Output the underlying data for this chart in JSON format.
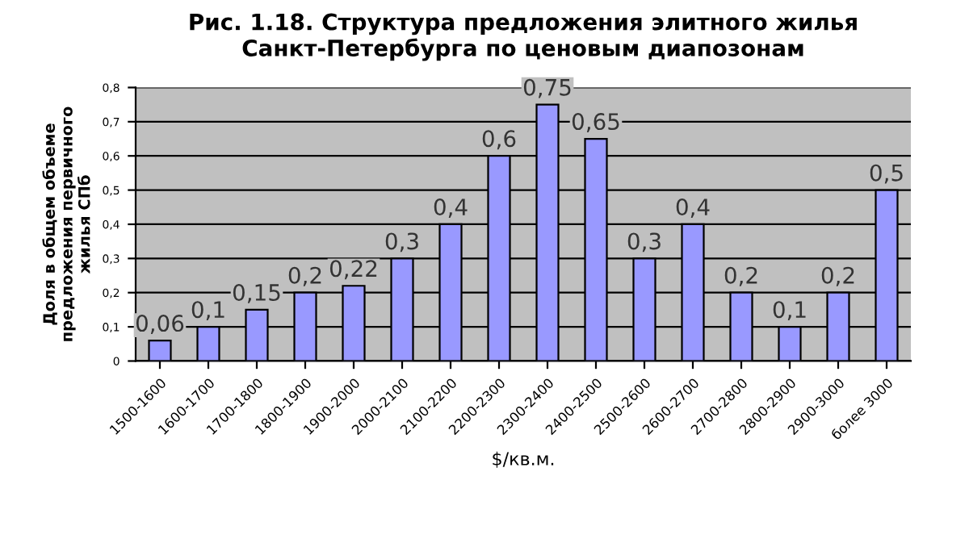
{
  "chart_data": {
    "type": "bar",
    "title": "Рис. 1.18. Структура предложения элитного жилья\nСанкт-Петербурга по ценовым диапозонам",
    "xlabel": "$/кв.м.",
    "ylabel": "Доля в общем объеме\nпредложения первичного\nжилья СПб",
    "categories": [
      "1500-1600",
      "1600-1700",
      "1700-1800",
      "1800-1900",
      "1900-2000",
      "2000-2100",
      "2100-2200",
      "2200-2300",
      "2300-2400",
      "2400-2500",
      "2500-2600",
      "2600-2700",
      "2700-2800",
      "2800-2900",
      "2900-3000",
      "более 3000"
    ],
    "values": [
      0.06,
      0.1,
      0.15,
      0.2,
      0.22,
      0.3,
      0.4,
      0.6,
      0.75,
      0.65,
      0.3,
      0.4,
      0.2,
      0.1,
      0.2,
      0.5
    ],
    "value_labels": [
      "0,06",
      "0,1",
      "0,15",
      "0,2",
      "0,22",
      "0,3",
      "0,4",
      "0,6",
      "0,75",
      "0,65",
      "0,3",
      "0,4",
      "0,2",
      "0,1",
      "0,2",
      "0,5"
    ],
    "color": "#9999ff",
    "ylim": [
      0,
      0.8
    ],
    "yticks": [
      0,
      {
        "value": 0.1,
        "label": "0,1"
      },
      {
        "value": 0.2,
        "label": "0,2"
      },
      {
        "value": 0.3,
        "label": "0,3"
      },
      {
        "value": 0.4,
        "label": "0,4"
      },
      {
        "value": 0.5,
        "label": "0,5"
      },
      {
        "value": 0.6,
        "label": "0,6"
      },
      {
        "value": 0.7,
        "label": "0,7"
      },
      {
        "value": 0.8,
        "label": "0,8"
      }
    ],
    "grid": "y"
  }
}
